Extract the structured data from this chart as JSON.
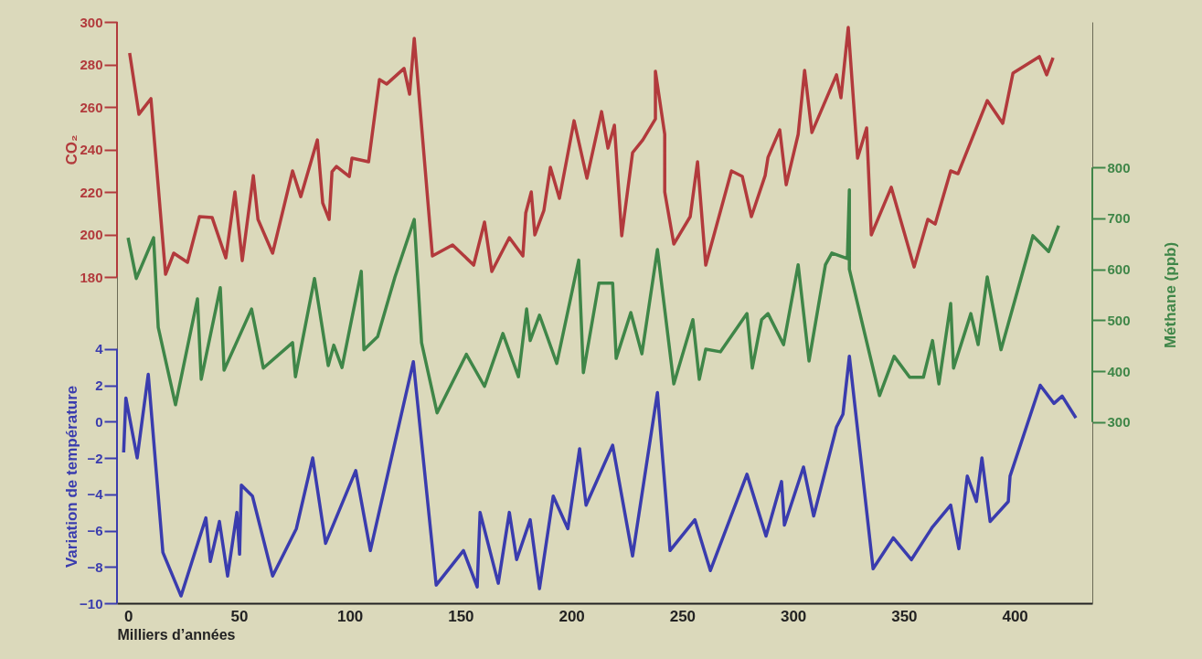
{
  "chart_data": {
    "type": "line",
    "xlabel": "Milliers d’années",
    "ylabel": "Variation de température",
    "y2label": "Méthane (ppb)",
    "y3label": "CO₂",
    "xlim": [
      -5,
      435
    ],
    "xticks": [
      0,
      50,
      100,
      150,
      200,
      250,
      300,
      350,
      400
    ],
    "y3lim": [
      26.5,
      300
    ],
    "y3ticks": [
      180,
      200,
      220,
      240,
      260,
      280,
      300
    ],
    "y2lim": [
      -56,
      1086
    ],
    "y2ticks": [
      300,
      400,
      500,
      600,
      700,
      800
    ],
    "ylim": [
      -10,
      22
    ],
    "yticks": [
      -10,
      -8,
      -6,
      -4,
      -2,
      0,
      2,
      4
    ],
    "grid": false,
    "marker": "none",
    "line_style": "solid",
    "series": [
      {
        "axis": "y3",
        "color": "#b23a3c",
        "x": [
          0.7,
          4.9,
          10.3,
          16.9,
          20.6,
          26.8,
          32.2,
          37.9,
          44.1,
          48.2,
          51.5,
          56.5,
          58.6,
          65.2,
          74.2,
          77.9,
          85.4,
          87.8,
          90.7,
          92.0,
          94.0,
          99.8,
          101.0,
          108.5,
          113.4,
          116.7,
          124.5,
          127.0,
          129.1,
          137.3,
          146.4,
          155.9,
          160.8,
          164.1,
          172.0,
          178.1,
          179.4,
          181.9,
          183.5,
          187.6,
          190.5,
          194.6,
          201.2,
          207.0,
          213.6,
          216.5,
          219.4,
          222.7,
          227.6,
          232.2,
          237.9,
          237.9,
          242.1,
          242.1,
          246.2,
          253.6,
          256.9,
          260.6,
          272.2,
          277.1,
          281.2,
          287.4,
          288.7,
          294.0,
          296.9,
          302.3,
          305.2,
          308.5,
          319.6,
          321.6,
          324.9,
          329.1,
          333.2,
          335.3,
          344.3,
          354.6,
          360.8,
          364.1,
          371.1,
          374.4,
          387.6,
          394.6,
          399.2,
          411.1,
          414.4,
          417.3
        ],
        "values": [
          285.4,
          256.6,
          263.9,
          181.3,
          191.2,
          186.9,
          208.4,
          208.0,
          189.0,
          220.0,
          187.7,
          227.7,
          207.1,
          191.2,
          229.9,
          217.8,
          244.5,
          214.8,
          207.1,
          229.5,
          232.0,
          227.3,
          235.9,
          234.2,
          272.9,
          270.8,
          278.1,
          266.0,
          292.3,
          189.9,
          195.1,
          185.6,
          205.8,
          182.6,
          198.5,
          189.9,
          210.1,
          220.0,
          199.8,
          211.4,
          231.6,
          217.0,
          253.5,
          226.5,
          257.8,
          240.6,
          251.4,
          199.4,
          238.5,
          244.5,
          254.4,
          276.8,
          247.1,
          220.0,
          195.5,
          208.4,
          234.2,
          185.6,
          229.9,
          227.3,
          208.4,
          227.7,
          236.3,
          249.2,
          223.4,
          247.1,
          277.2,
          248.0,
          275.1,
          264.3,
          297.4,
          235.9,
          250.1,
          199.8,
          222.2,
          184.7,
          207.1,
          204.9,
          229.9,
          228.6,
          263.0,
          252.3,
          275.9,
          283.7,
          275.1,
          283.2
        ]
      },
      {
        "axis": "y2",
        "color": "#3f8648",
        "x": [
          0,
          3.7,
          11.5,
          13.6,
          21.4,
          31.3,
          33.0,
          41.6,
          43.3,
          55.7,
          61.0,
          74.2,
          75.5,
          84.1,
          90.3,
          92.8,
          96.5,
          105.2,
          106.4,
          112.6,
          120.4,
          129.1,
          132.4,
          139.4,
          152.6,
          160.8,
          169.1,
          176.1,
          179.8,
          181.4,
          185.6,
          193.4,
          203.3,
          205.4,
          212.4,
          218.6,
          220.2,
          226.8,
          231.8,
          238.8,
          246.2,
          254.8,
          257.7,
          260.6,
          267.2,
          279.2,
          281.6,
          285.8,
          288.7,
          295.7,
          302.3,
          307.2,
          314.6,
          317.5,
          324.5,
          325.4,
          325.4,
          339.0,
          345.6,
          352.6,
          358.8,
          362.9,
          365.8,
          371.1,
          372.4,
          380.2,
          383.5,
          387.6,
          393.8,
          408.2,
          415.3,
          419.8
        ],
        "values": [
          662,
          582,
          662,
          486,
          334,
          542,
          384,
          564,
          402,
          522,
          406,
          456,
          389,
          582,
          411,
          451,
          407,
          596,
          442,
          468,
          585,
          698,
          456,
          318,
          433,
          370,
          474,
          389,
          522,
          460,
          510,
          415,
          618,
          397,
          573,
          573,
          425,
          515,
          434,
          639,
          375,
          501,
          384,
          443,
          438,
          513,
          406,
          501,
          513,
          452,
          609,
          420,
          609,
          632,
          621,
          756,
          600,
          352,
          429,
          388,
          388,
          460,
          375,
          533,
          406,
          513,
          452,
          585,
          442,
          666,
          635,
          686
        ]
      },
      {
        "axis": "y",
        "color": "#3a3cae",
        "x": [
          -2,
          -1,
          4.1,
          9.1,
          15.7,
          23.9,
          35.1,
          37.1,
          41.2,
          44.9,
          49.1,
          50.3,
          51.1,
          56.1,
          65.2,
          75.9,
          83.3,
          89.1,
          102.7,
          109.3,
          128.7,
          139.0,
          151.3,
          157.5,
          158.8,
          167.0,
          172.0,
          175.3,
          181.4,
          185.6,
          191.8,
          198.4,
          203.7,
          206.6,
          218.6,
          227.6,
          238.8,
          244.5,
          255.7,
          262.7,
          279.2,
          287.8,
          294.8,
          296.1,
          304.7,
          309.3,
          319.6,
          322.5,
          325.4,
          336.1,
          345.2,
          353.4,
          362.9,
          371.1,
          374.8,
          378.6,
          382.7,
          385.2,
          388.9,
          397.1,
          397.9,
          411.5,
          417.7,
          421.4,
          427.6
        ],
        "values": [
          -1.7,
          1.3,
          -2.0,
          2.6,
          -7.2,
          -9.6,
          -5.3,
          -7.7,
          -5.5,
          -8.5,
          -5.0,
          -7.3,
          -3.5,
          -4.1,
          -8.5,
          -5.9,
          -2.0,
          -6.7,
          -2.7,
          -7.1,
          3.3,
          -9.0,
          -7.1,
          -9.1,
          -5.0,
          -8.9,
          -5.0,
          -7.6,
          -5.4,
          -9.2,
          -4.1,
          -5.9,
          -1.5,
          -4.6,
          -1.3,
          -7.4,
          1.6,
          -7.1,
          -5.4,
          -8.2,
          -2.9,
          -6.3,
          -3.3,
          -5.7,
          -2.5,
          -5.2,
          -0.3,
          0.4,
          3.6,
          -8.1,
          -6.4,
          -7.6,
          -5.8,
          -4.6,
          -7.0,
          -3.0,
          -4.4,
          -2.0,
          -5.5,
          -4.4,
          -3.0,
          2.0,
          1.0,
          1.4,
          0.2
        ]
      }
    ]
  }
}
